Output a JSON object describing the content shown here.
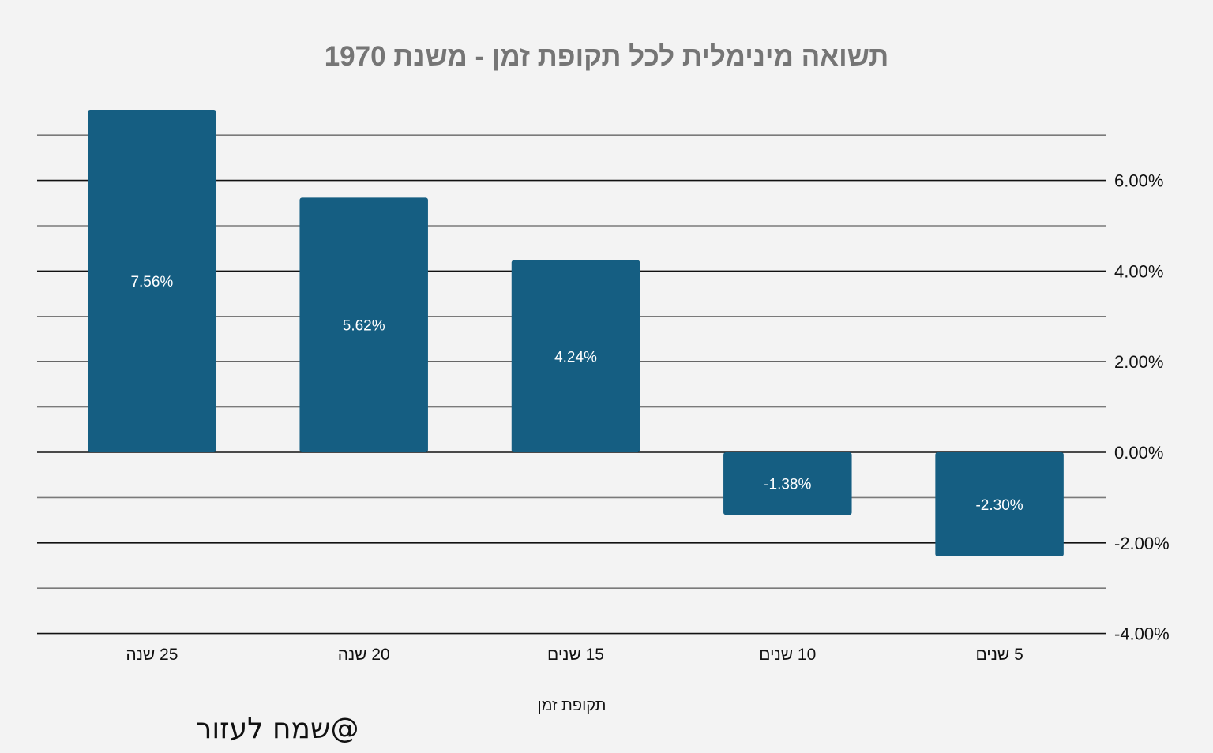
{
  "chart_data": {
    "type": "bar",
    "title": "תשואה מינימלית לכל תקופת זמן - משנת 1970",
    "xlabel": "תקופת זמן",
    "ylabel": "",
    "categories": [
      "25 שנה",
      "20 שנה",
      "15 שנים",
      "10 שנים",
      "5 שנים"
    ],
    "values": [
      7.56,
      5.62,
      4.24,
      -1.38,
      -2.3
    ],
    "data_labels": [
      "7.56%",
      "5.62%",
      "4.24%",
      "-1.38%",
      "-2.30%"
    ],
    "ylim": [
      -4,
      7
    ],
    "major_ticks": [
      -4,
      -2,
      0,
      2,
      4,
      6
    ],
    "tick_labels": [
      "-4.00%",
      "-2.00%",
      "0.00%",
      "2.00%",
      "4.00%",
      "6.00%"
    ],
    "minor_gridlines": [
      -3,
      -1,
      1,
      3,
      5,
      7
    ],
    "grid": true,
    "axis_side": "right",
    "bar_color": "#155e82",
    "watermark": "@שמח לעזור"
  }
}
